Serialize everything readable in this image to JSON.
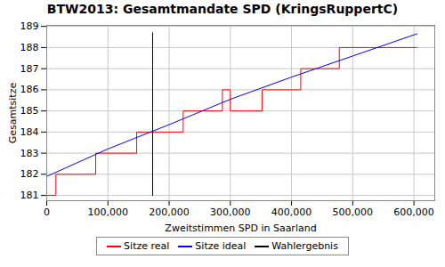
{
  "chart_data": {
    "type": "line",
    "title": "BTW2013: Gesamtmandate SPD (KringsRuppertC)",
    "x_label": "Zweitstimmen SPD in Saarland",
    "y_label": "Gesamtsitze",
    "xlim": [
      0,
      634000
    ],
    "ylim": [
      180.75,
      189.05
    ],
    "xticks": [
      0,
      {
        "value": 100000,
        "label": "100,000"
      },
      {
        "value": 200000,
        "label": "200,000"
      },
      {
        "value": 300000,
        "label": "300,000"
      },
      {
        "value": 400000,
        "label": "400,000"
      },
      {
        "value": 500000,
        "label": "500,000"
      },
      {
        "value": 600000,
        "label": "600,000"
      }
    ],
    "yticks": [
      181,
      182,
      183,
      184,
      185,
      186,
      187,
      188,
      189
    ],
    "grid": true,
    "legend": "bottom",
    "series": [
      {
        "name": "Sitze real",
        "color": "#ff0000",
        "line_style": "step",
        "x": [
          0,
          15000,
          80000,
          147000,
          223000,
          287000,
          300000,
          352000,
          415000,
          478000,
          605000
        ],
        "values": [
          181,
          182,
          183,
          184,
          185,
          186,
          185,
          186,
          187,
          188,
          188
        ]
      },
      {
        "name": "Sitze ideal",
        "color": "#0000ff",
        "line_style": "solid",
        "x": [
          0,
          100000,
          200000,
          300000,
          400000,
          500000,
          605000
        ],
        "values": [
          181.9,
          183.2,
          184.35,
          185.55,
          186.6,
          187.6,
          188.65
        ]
      },
      {
        "name": "Wahlergebnis",
        "color": "#000000",
        "line_style": "solid",
        "x": [
          173000,
          173000
        ],
        "values": [
          181,
          188.7
        ]
      }
    ]
  }
}
